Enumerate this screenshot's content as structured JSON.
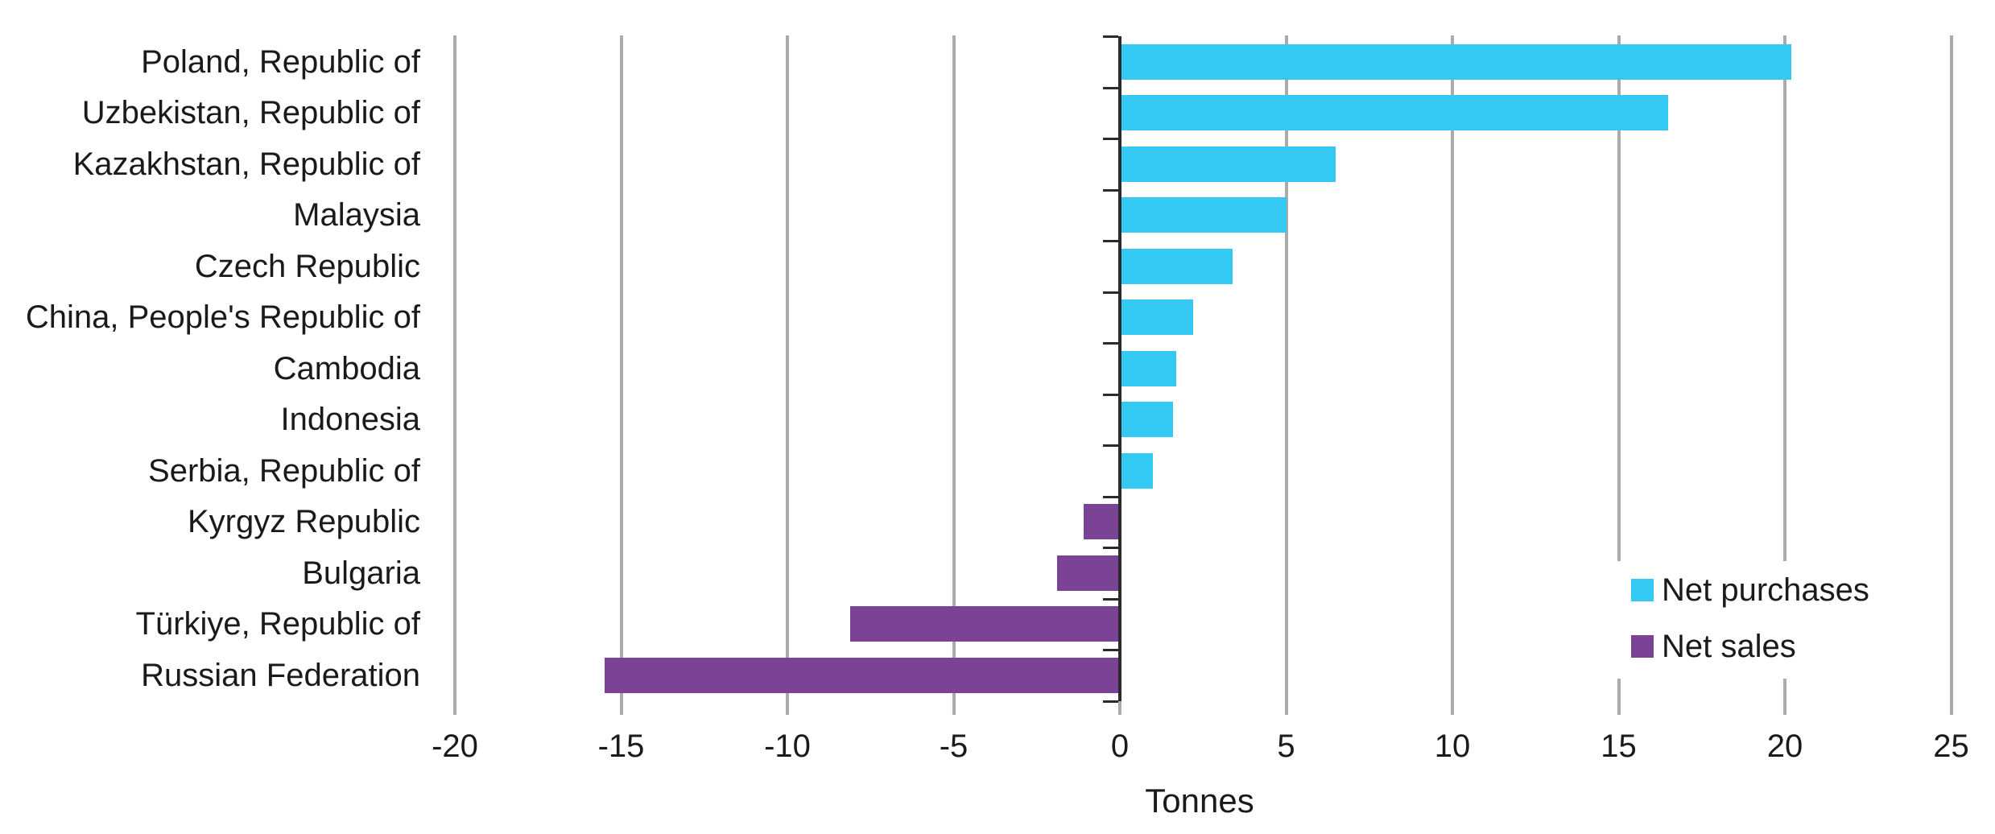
{
  "chart_data": {
    "type": "bar",
    "orientation": "horizontal",
    "title": "",
    "xlabel": "Tonnes",
    "categories": [
      "Poland, Republic of",
      "Uzbekistan, Republic of",
      "Kazakhstan, Republic of",
      "Malaysia",
      "Czech Republic",
      "China, People's Republic of",
      "Cambodia",
      "Indonesia",
      "Serbia, Republic of",
      "Kyrgyz Republic",
      "Bulgaria",
      "Türkiye, Republic of",
      "Russian Federation"
    ],
    "values": [
      20.2,
      16.5,
      6.5,
      5.0,
      3.4,
      2.2,
      1.7,
      1.6,
      1.0,
      -1.1,
      -1.9,
      -8.1,
      -15.5
    ],
    "x_ticks": [
      -20,
      -15,
      -10,
      -5,
      0,
      5,
      10,
      15,
      20,
      25
    ],
    "xlim": [
      -20.6,
      25.5
    ],
    "grid": true,
    "legend_position": "right-middle",
    "legend": [
      {
        "label": "Net purchases",
        "color": "#33C9F2"
      },
      {
        "label": "Net sales",
        "color": "#7A4396"
      }
    ],
    "colors": {
      "positive_bar": "#33C9F2",
      "negative_bar": "#7A4396",
      "gridline": "#ABABAB",
      "axis": "#2B2B2B",
      "text": "#1A1A1A"
    }
  }
}
